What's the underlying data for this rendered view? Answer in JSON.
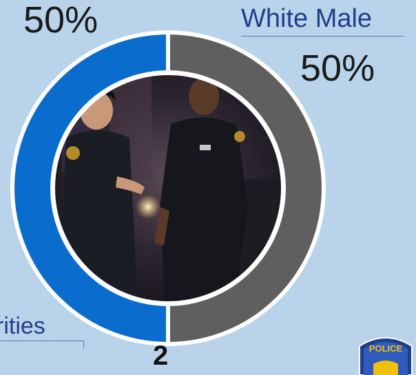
{
  "chart_data": {
    "type": "pie",
    "style": "donut",
    "categories": [
      "Minorities",
      "White Male"
    ],
    "values": [
      50,
      50
    ],
    "percent_labels": [
      "50%",
      "50%"
    ],
    "colors": [
      "#0a6dce",
      "#5f5f5f"
    ],
    "total_label": "2"
  },
  "labels": {
    "left_percent": "50%",
    "right_category": "White Male",
    "right_percent": "50%",
    "left_category": "rities",
    "total": "2"
  },
  "badge": {
    "text": "POLICE",
    "icon": "police-patch-icon"
  }
}
